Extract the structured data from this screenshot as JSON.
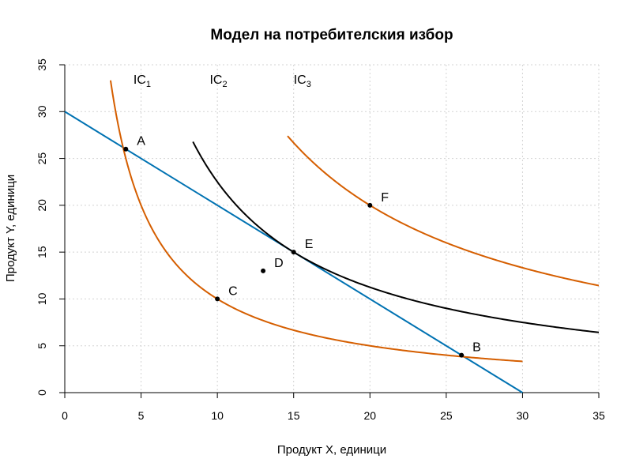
{
  "chart_data": {
    "type": "line",
    "title": "Модел на потребителския избор",
    "xlabel": "Продукт X, единици",
    "ylabel": "Продукт Y, единици",
    "xlim": [
      0,
      35
    ],
    "ylim": [
      0,
      35
    ],
    "xticks": [
      0,
      5,
      10,
      15,
      20,
      25,
      30,
      35
    ],
    "yticks": [
      0,
      5,
      10,
      15,
      20,
      25,
      30,
      35
    ],
    "grid": true,
    "colors": {
      "budget": "#0072B2",
      "ic_orange": "#D55E00",
      "ic_black": "#000000"
    },
    "series": [
      {
        "id": "budget",
        "type": "line",
        "x": [
          0,
          30
        ],
        "y": [
          30,
          0
        ],
        "color": "#0072B2"
      },
      {
        "id": "ic1",
        "name": "IC",
        "sub": "1",
        "type": "curve",
        "k": 100,
        "x_range": [
          3,
          30
        ],
        "color": "#D55E00"
      },
      {
        "id": "ic2",
        "name": "IC",
        "sub": "2",
        "type": "curve",
        "k": 225,
        "x_range": [
          8.4,
          35
        ],
        "color": "#000000"
      },
      {
        "id": "ic3",
        "name": "IC",
        "sub": "3",
        "type": "curve",
        "k": 400,
        "x_range": [
          14.6,
          35
        ],
        "color": "#D55E00"
      }
    ],
    "curve_labels": [
      {
        "series": "ic1",
        "text": "IC",
        "sub": "1",
        "x": 4.5,
        "y": 33.5
      },
      {
        "series": "ic2",
        "text": "IC",
        "sub": "2",
        "x": 9.5,
        "y": 33.5
      },
      {
        "series": "ic3",
        "text": "IC",
        "sub": "3",
        "x": 15.0,
        "y": 33.5
      }
    ],
    "points": [
      {
        "label": "A",
        "x": 4,
        "y": 26
      },
      {
        "label": "B",
        "x": 26,
        "y": 4
      },
      {
        "label": "C",
        "x": 10,
        "y": 10
      },
      {
        "label": "D",
        "x": 13,
        "y": 13
      },
      {
        "label": "E",
        "x": 15,
        "y": 15
      },
      {
        "label": "F",
        "x": 20,
        "y": 20
      }
    ]
  }
}
